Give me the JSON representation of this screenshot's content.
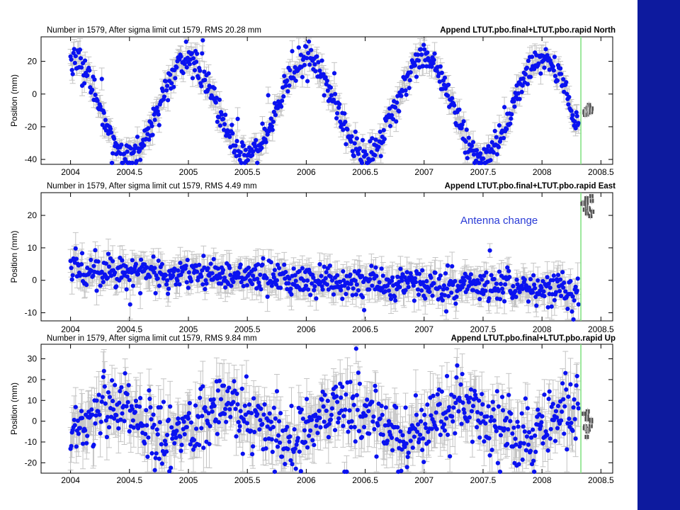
{
  "theme": {
    "point_color": "#0a12f0",
    "rapid_point_color": "#505050",
    "error_bar_color": "#c4c4c4",
    "event_line_color": "#7ee07e",
    "side_band_color": "#0d1a9e",
    "annotation_color": "#2a3bd6"
  },
  "annotation": {
    "text": "Antenna change"
  },
  "chart_data": [
    {
      "type": "scatter",
      "stats": "Number in    1579, After sigma limit cut    1579, RMS   20.28 mm",
      "title": "Append LTUT.pbo.final+LTUT.pbo.rapid North",
      "ylabel": "Position (mm)",
      "xlabel": "",
      "xlim": [
        2003.75,
        2008.6
      ],
      "ylim": [
        -43,
        35
      ],
      "x_ticks": [
        2004,
        2004.5,
        2005,
        2005.5,
        2006,
        2006.5,
        2007,
        2007.5,
        2008,
        2008.5
      ],
      "x_tick_labels": [
        "2004",
        "2004.5",
        "2005",
        "2005.5",
        "2006",
        "2006.5",
        "2007",
        "2007.5",
        "2008",
        "2008.5"
      ],
      "y_ticks": [
        -40,
        -20,
        0,
        20
      ],
      "y_tick_labels": [
        "-40",
        "-20",
        "0",
        "20"
      ],
      "grid": false,
      "event_x": 2008.33,
      "model": {
        "kind": "seasonal",
        "mean": -8,
        "amplitude": 30,
        "phase_years": 0.0,
        "trend_per_year": 0,
        "noise": 4.5,
        "error_bar": 5,
        "rapid_mean": -10,
        "rapid_spread": 1.5
      },
      "series": [
        {
          "name": "",
          "role": "final",
          "x_range": [
            2004.0,
            2008.31
          ],
          "points": 700
        },
        {
          "name": "",
          "role": "rapid",
          "x_range": [
            2008.35,
            2008.43
          ],
          "points": 14
        }
      ]
    },
    {
      "type": "scatter",
      "stats": "Number in    1579, After sigma limit cut    1579, RMS    4.49 mm",
      "title": "Append LTUT.pbo.final+LTUT.pbo.rapid East",
      "ylabel": "Position (mm)",
      "xlabel": "",
      "xlim": [
        2003.75,
        2008.6
      ],
      "ylim": [
        -12.5,
        27
      ],
      "x_ticks": [
        2004,
        2004.5,
        2005,
        2005.5,
        2006,
        2006.5,
        2007,
        2007.5,
        2008,
        2008.5
      ],
      "x_tick_labels": [
        "2004",
        "2004.5",
        "2005",
        "2005.5",
        "2006",
        "2006.5",
        "2007",
        "2007.5",
        "2008",
        "2008.5"
      ],
      "y_ticks": [
        -10,
        0,
        10,
        20
      ],
      "y_tick_labels": [
        "-10",
        "0",
        "10",
        "20"
      ],
      "grid": false,
      "event_x": 2008.33,
      "model": {
        "kind": "linear",
        "start": 3.5,
        "end": -3.5,
        "noise": 2.5,
        "error_bar": 3.5,
        "rapid_mean": 23,
        "rapid_spread": 1.5
      },
      "series": [
        {
          "name": "",
          "role": "final",
          "x_range": [
            2004.0,
            2008.31
          ],
          "points": 700
        },
        {
          "name": "",
          "role": "rapid",
          "x_range": [
            2008.33,
            2008.43
          ],
          "points": 14
        }
      ]
    },
    {
      "type": "scatter",
      "stats": "Number in    1579, After sigma limit cut    1579, RMS    9.84 mm",
      "title": "Append LTUT.pbo.final+LTUT.pbo.rapid Up",
      "ylabel": "Position (mm)",
      "xlabel": "",
      "xlim": [
        2003.75,
        2008.6
      ],
      "ylim": [
        -25,
        37
      ],
      "x_ticks": [
        2004,
        2004.5,
        2005,
        2005.5,
        2006,
        2006.5,
        2007,
        2007.5,
        2008,
        2008.5
      ],
      "x_tick_labels": [
        "2004",
        "2004.5",
        "2005",
        "2005.5",
        "2006",
        "2006.5",
        "2007",
        "2007.5",
        "2008",
        "2008.5"
      ],
      "y_ticks": [
        -20,
        -10,
        0,
        10,
        20,
        30
      ],
      "y_tick_labels": [
        "-20",
        "-10",
        "0",
        "10",
        "20",
        "30"
      ],
      "grid": false,
      "event_x": 2008.33,
      "model": {
        "kind": "seasonal",
        "mean": 0,
        "amplitude": 7,
        "phase_years": 0.35,
        "trend_per_year": 0,
        "noise": 8,
        "error_bar": 9,
        "rapid_mean": 0,
        "rapid_spread": 4
      },
      "series": [
        {
          "name": "",
          "role": "final",
          "x_range": [
            2004.0,
            2008.31
          ],
          "points": 700
        },
        {
          "name": "",
          "role": "rapid",
          "x_range": [
            2008.35,
            2008.43
          ],
          "points": 14
        }
      ]
    }
  ]
}
